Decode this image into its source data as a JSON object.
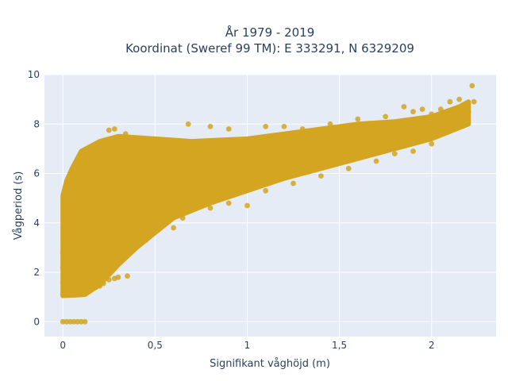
{
  "chart_data": {
    "type": "scatter",
    "title_line1": "År 1979 - 2019",
    "title_line2": "Koordinat (Sweref 99 TM): E 333291, N 6329209",
    "xlabel": "Signifikant våghöjd (m)",
    "ylabel": "Vågperiod (s)",
    "xlim": [
      -0.1,
      2.35
    ],
    "ylim": [
      -0.6,
      10.0
    ],
    "x_ticks": [
      0,
      0.5,
      1,
      1.5,
      2
    ],
    "x_tick_labels": [
      "0",
      "0,5",
      "1",
      "1,5",
      "2"
    ],
    "y_ticks": [
      0,
      2,
      4,
      6,
      8,
      10
    ],
    "y_tick_labels": [
      "0",
      "2",
      "4",
      "6",
      "8",
      "10"
    ],
    "grid": true,
    "legend": "none",
    "plot_bgcolor": "#E5ECF6",
    "marker_color": "#D4A521",
    "band_upper": [
      [
        0.0,
        5.1
      ],
      [
        0.02,
        5.7
      ],
      [
        0.05,
        6.2
      ],
      [
        0.1,
        6.9
      ],
      [
        0.2,
        7.3
      ],
      [
        0.3,
        7.5
      ],
      [
        0.5,
        7.4
      ],
      [
        0.7,
        7.3
      ],
      [
        1.0,
        7.4
      ],
      [
        1.2,
        7.6
      ],
      [
        1.4,
        7.8
      ],
      [
        1.6,
        8.0
      ],
      [
        1.8,
        8.1
      ],
      [
        2.0,
        8.3
      ],
      [
        2.15,
        8.7
      ],
      [
        2.2,
        8.9
      ]
    ],
    "band_lower": [
      [
        2.2,
        8.0
      ],
      [
        2.1,
        7.7
      ],
      [
        2.0,
        7.4
      ],
      [
        1.8,
        7.0
      ],
      [
        1.6,
        6.6
      ],
      [
        1.4,
        6.2
      ],
      [
        1.2,
        5.8
      ],
      [
        1.0,
        5.3
      ],
      [
        0.8,
        4.8
      ],
      [
        0.6,
        4.2
      ],
      [
        0.5,
        3.6
      ],
      [
        0.4,
        3.0
      ],
      [
        0.3,
        2.3
      ],
      [
        0.2,
        1.5
      ],
      [
        0.12,
        1.1
      ],
      [
        0.0,
        1.05
      ]
    ],
    "series": [
      {
        "points": [
          [
            0.0,
            0.0
          ],
          [
            0.02,
            0.0
          ],
          [
            0.04,
            0.0
          ],
          [
            0.06,
            0.0
          ],
          [
            0.08,
            0.0
          ],
          [
            0.1,
            0.0
          ],
          [
            0.12,
            0.0
          ],
          [
            0.0,
            1.1
          ],
          [
            0.0,
            1.6
          ],
          [
            0.0,
            2.2
          ],
          [
            0.0,
            2.8
          ],
          [
            0.01,
            3.5
          ],
          [
            0.01,
            4.3
          ],
          [
            0.01,
            5.0
          ],
          [
            0.03,
            1.2
          ],
          [
            0.04,
            2.6
          ],
          [
            0.05,
            3.9
          ],
          [
            0.05,
            5.8
          ],
          [
            0.07,
            1.1
          ],
          [
            0.1,
            1.3
          ],
          [
            0.1,
            2.5
          ],
          [
            0.1,
            4.8
          ],
          [
            0.11,
            6.3
          ],
          [
            0.12,
            6.5
          ],
          [
            0.15,
            1.35
          ],
          [
            0.18,
            1.4
          ],
          [
            0.2,
            1.45
          ],
          [
            0.22,
            1.55
          ],
          [
            0.25,
            1.7
          ],
          [
            0.28,
            1.75
          ],
          [
            0.3,
            1.8
          ],
          [
            0.35,
            1.85
          ],
          [
            0.25,
            7.75
          ],
          [
            0.28,
            7.8
          ],
          [
            0.34,
            7.6
          ],
          [
            0.2,
            3.0
          ],
          [
            0.3,
            5.5
          ],
          [
            0.35,
            2.9
          ],
          [
            0.45,
            3.3
          ],
          [
            0.55,
            4.0
          ],
          [
            0.6,
            3.8
          ],
          [
            0.65,
            4.2
          ],
          [
            0.68,
            8.0
          ],
          [
            0.8,
            7.9
          ],
          [
            0.9,
            7.8
          ],
          [
            1.1,
            7.9
          ],
          [
            1.2,
            7.9
          ],
          [
            1.3,
            7.8
          ],
          [
            1.45,
            8.0
          ],
          [
            1.6,
            8.2
          ],
          [
            0.8,
            4.6
          ],
          [
            0.9,
            4.8
          ],
          [
            1.0,
            4.7
          ],
          [
            1.1,
            5.3
          ],
          [
            1.25,
            5.6
          ],
          [
            1.4,
            5.9
          ],
          [
            1.55,
            6.2
          ],
          [
            1.7,
            6.5
          ],
          [
            1.8,
            6.8
          ],
          [
            1.9,
            6.9
          ],
          [
            2.0,
            7.2
          ],
          [
            1.75,
            8.3
          ],
          [
            1.85,
            8.7
          ],
          [
            1.9,
            8.5
          ],
          [
            1.95,
            8.6
          ],
          [
            2.0,
            8.4
          ],
          [
            2.05,
            8.6
          ],
          [
            2.1,
            8.9
          ],
          [
            2.15,
            9.0
          ],
          [
            2.18,
            8.8
          ],
          [
            2.2,
            8.5
          ],
          [
            2.23,
            8.9
          ],
          [
            2.22,
            9.55
          ]
        ]
      }
    ]
  }
}
